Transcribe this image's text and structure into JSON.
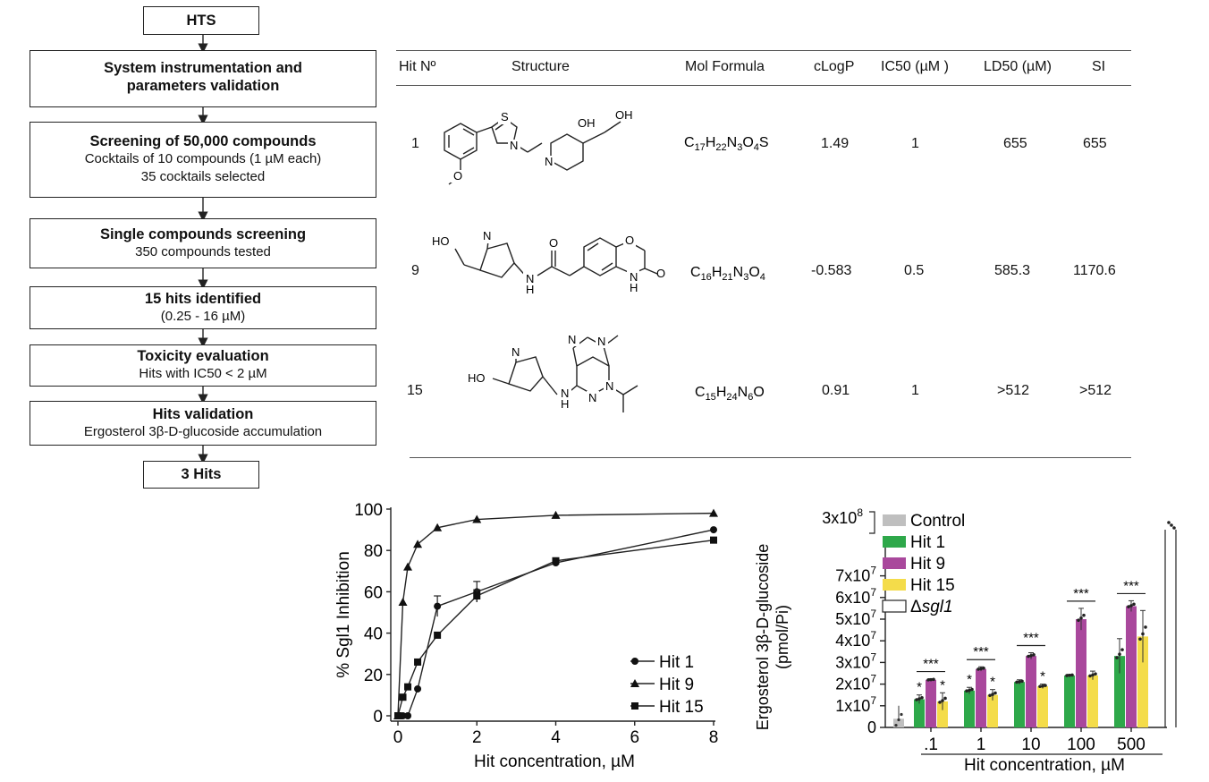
{
  "flowchart": {
    "steps": [
      {
        "title": "HTS",
        "lines": []
      },
      {
        "title": "System instrumentation and",
        "title2": "parameters validation",
        "lines": []
      },
      {
        "title": "Screening of 50,000 compounds",
        "lines": [
          "Cocktails of 10 compounds (1 µM each)",
          "35 cocktails selected"
        ]
      },
      {
        "title": "Single compounds screening",
        "lines": [
          "350 compounds tested"
        ]
      },
      {
        "title": "15 hits identified",
        "lines": [
          "(0.25 - 16 µM)"
        ]
      },
      {
        "title": "Toxicity evaluation",
        "lines": [
          "Hits with IC50 < 2 µM"
        ]
      },
      {
        "title": "Hits validation",
        "lines": [
          "Ergosterol 3β-D-glucoside accumulation"
        ]
      },
      {
        "title": "3 Hits",
        "lines": []
      }
    ]
  },
  "table": {
    "headers": {
      "hit": "Hit Nº",
      "structure": "Structure",
      "formula": "Mol Formula",
      "clogp": "cLogP",
      "ic50": "IC50 (µM )",
      "ld50": "LD50 (µM)",
      "si": "SI"
    },
    "rows": [
      {
        "hit": "1",
        "formula": {
          "parts": [
            "C",
            "17",
            "H",
            "22",
            "N",
            "3",
            "O",
            "4",
            "S",
            ""
          ]
        },
        "clogp": "1.49",
        "ic50": "1",
        "ld50": "655",
        "si": "655",
        "atoms": {
          "s": "S",
          "n1": "N",
          "n2": "N",
          "oh1": "OH",
          "oh2": "OH",
          "o": "O"
        }
      },
      {
        "hit": "9",
        "formula": {
          "parts": [
            "C",
            "16",
            "H",
            "21",
            "N",
            "3",
            "O",
            "4"
          ]
        },
        "clogp": "-0.583",
        "ic50": "0.5",
        "ld50": "585.3",
        "si": "1170.6",
        "atoms": {
          "ho": "HO",
          "n1": "N",
          "nh1": "N",
          "h1": "H",
          "o1": "O",
          "o2": "O",
          "nh2": "N",
          "h2": "H",
          "o3": "O"
        }
      },
      {
        "hit": "15",
        "formula": {
          "parts": [
            "C",
            "15",
            "H",
            "24",
            "N",
            "6",
            "O",
            ""
          ]
        },
        "clogp": "0.91",
        "ic50": "1",
        "ld50": ">512",
        "si": ">512",
        "atoms": {
          "ho": "HO",
          "n1": "N",
          "n2": "N",
          "n3": "N",
          "n4": "N",
          "n5": "N",
          "nh": "N",
          "h": "H"
        }
      }
    ]
  },
  "chart_data": [
    {
      "type": "line",
      "xlabel": "Hit concentration, µM",
      "ylabel": "% Sgl1 Inhibition",
      "xlim": [
        0,
        8
      ],
      "ylim": [
        0,
        100
      ],
      "xticks": [
        "0",
        "2",
        "4",
        "6",
        "8"
      ],
      "yticks": [
        "0",
        "20",
        "40",
        "60",
        "80",
        "100"
      ],
      "legend_position": "bottom-right",
      "series": [
        {
          "name": "Hit 1",
          "marker": "circle",
          "x": [
            0,
            0.125,
            0.25,
            0.5,
            1,
            2,
            4,
            8
          ],
          "y": [
            0,
            0,
            0,
            13,
            53,
            60,
            74,
            90
          ],
          "err": [
            0,
            0,
            0,
            0,
            5,
            5,
            0,
            0
          ]
        },
        {
          "name": "Hit 9",
          "marker": "triangle",
          "x": [
            0,
            0.125,
            0.25,
            0.5,
            1,
            2,
            4,
            8
          ],
          "y": [
            0,
            55,
            72,
            83,
            91,
            95,
            97,
            98
          ],
          "err": [
            0,
            0,
            0,
            0,
            0,
            0,
            0,
            0
          ]
        },
        {
          "name": "Hit 15",
          "marker": "square",
          "x": [
            0,
            0.125,
            0.25,
            0.5,
            1,
            2,
            4,
            8
          ],
          "y": [
            0,
            9,
            14,
            26,
            39,
            58,
            75,
            85
          ],
          "err": [
            0,
            0,
            0,
            0,
            0,
            3,
            0,
            0
          ]
        }
      ]
    },
    {
      "type": "bar",
      "xlabel": "Hit concentration, µM",
      "ylabel": "Ergosterol 3β-D-glucoside",
      "ylabel2": "(pmol/Pi)",
      "categories": [
        ".1",
        "1",
        "10",
        "100",
        "500"
      ],
      "yticks": [
        {
          "base": "0",
          "exp": ""
        },
        {
          "base": "1x10",
          "exp": "7"
        },
        {
          "base": "2x10",
          "exp": "7"
        },
        {
          "base": "3x10",
          "exp": "7"
        },
        {
          "base": "4x10",
          "exp": "7"
        },
        {
          "base": "5x10",
          "exp": "7"
        },
        {
          "base": "6x10",
          "exp": "7"
        },
        {
          "base": "7x10",
          "exp": "7"
        }
      ],
      "ytick_break": {
        "base": "3x10",
        "exp": "8"
      },
      "unit_scale": "x10^7",
      "control": {
        "value": 0.4,
        "color": "#bfbfbf"
      },
      "deletion": {
        "value": 30,
        "note": "above axis break (~3x10^8)"
      },
      "legend": [
        {
          "name": "Control",
          "color": "#bfbfbf",
          "italic": ""
        },
        {
          "name": "Hit 1",
          "color": "#2ea84a",
          "italic": ""
        },
        {
          "name": "Hit 9",
          "color": "#a9489c",
          "italic": ""
        },
        {
          "name": "Hit 15",
          "color": "#f4dc4a",
          "italic": ""
        },
        {
          "name": "Δ",
          "color": "#ffffff",
          "italic": "sgl1"
        }
      ],
      "series": [
        {
          "name": "Hit 1",
          "color": "#2ea84a",
          "values": [
            1.3,
            1.7,
            2.1,
            2.4,
            3.3
          ],
          "err": [
            0.2,
            0.15,
            0.1,
            0.05,
            0.8
          ]
        },
        {
          "name": "Hit 9",
          "color": "#a9489c",
          "values": [
            2.2,
            2.7,
            3.3,
            5.0,
            5.6
          ],
          "err": [
            0.05,
            0.1,
            0.15,
            0.5,
            0.25
          ]
        },
        {
          "name": "Hit 15",
          "color": "#f4dc4a",
          "values": [
            1.2,
            1.5,
            1.9,
            2.4,
            4.2
          ],
          "err": [
            0.4,
            0.25,
            0.1,
            0.2,
            1.2
          ]
        }
      ],
      "significance": [
        {
          "hit1": "*",
          "hit9": "***",
          "hit15": "*"
        },
        {
          "hit1": "*",
          "hit9": "***",
          "hit15": "*"
        },
        {
          "hit1": "",
          "hit9": "***",
          "hit15": "*"
        },
        {
          "hit1": "",
          "hit9": "***",
          "hit15": ""
        },
        {
          "hit1": "",
          "hit9": "***",
          "hit15": ""
        }
      ]
    }
  ]
}
